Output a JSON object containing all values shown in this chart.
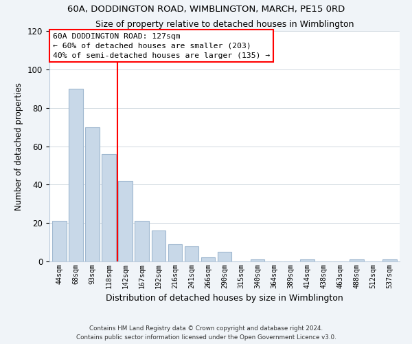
{
  "title": "60A, DODDINGTON ROAD, WIMBLINGTON, MARCH, PE15 0RD",
  "subtitle": "Size of property relative to detached houses in Wimblington",
  "xlabel": "Distribution of detached houses by size in Wimblington",
  "ylabel": "Number of detached properties",
  "bar_labels": [
    "44sqm",
    "68sqm",
    "93sqm",
    "118sqm",
    "142sqm",
    "167sqm",
    "192sqm",
    "216sqm",
    "241sqm",
    "266sqm",
    "290sqm",
    "315sqm",
    "340sqm",
    "364sqm",
    "389sqm",
    "414sqm",
    "438sqm",
    "463sqm",
    "488sqm",
    "512sqm",
    "537sqm"
  ],
  "bar_values": [
    21,
    90,
    70,
    56,
    42,
    21,
    16,
    9,
    8,
    2,
    5,
    0,
    1,
    0,
    0,
    1,
    0,
    0,
    1,
    0,
    1
  ],
  "bar_color": "#c8d8e8",
  "bar_edge_color": "#a0b8d0",
  "vline_x": 3.5,
  "vline_color": "red",
  "annotation_title": "60A DODDINGTON ROAD: 127sqm",
  "annotation_line1": "← 60% of detached houses are smaller (203)",
  "annotation_line2": "40% of semi-detached houses are larger (135) →",
  "annotation_box_color": "white",
  "annotation_box_edge": "red",
  "ylim": [
    0,
    120
  ],
  "yticks": [
    0,
    20,
    40,
    60,
    80,
    100,
    120
  ],
  "footnote1": "Contains HM Land Registry data © Crown copyright and database right 2024.",
  "footnote2": "Contains public sector information licensed under the Open Government Licence v3.0.",
  "bg_color": "#f0f4f8",
  "plot_bg_color": "#ffffff"
}
